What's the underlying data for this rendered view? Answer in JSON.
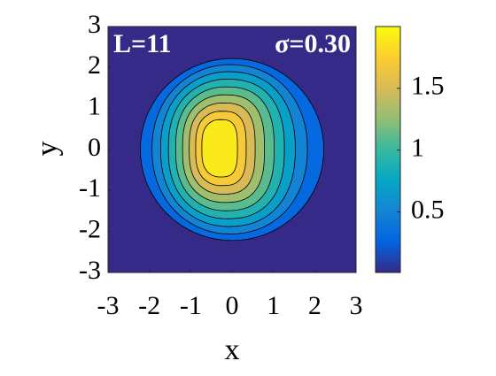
{
  "chart_data": {
    "type": "contour",
    "annotations": [
      "L=11",
      "σ=0.30"
    ],
    "xlabel": "x",
    "ylabel": "y",
    "xlim": [
      -3,
      3
    ],
    "ylim": [
      -3,
      3
    ],
    "xticks": [
      -3,
      -2,
      -1,
      0,
      1,
      2,
      3
    ],
    "yticks": [
      -3,
      -2,
      -1,
      0,
      1,
      2,
      3
    ],
    "levels": [
      0.2,
      0.4,
      0.6,
      0.8,
      1.0,
      1.2,
      1.4,
      1.6,
      1.8
    ],
    "clim": [
      0.01,
      2.0
    ],
    "colorbar_ticks": [
      0.5,
      1,
      1.5
    ]
  }
}
